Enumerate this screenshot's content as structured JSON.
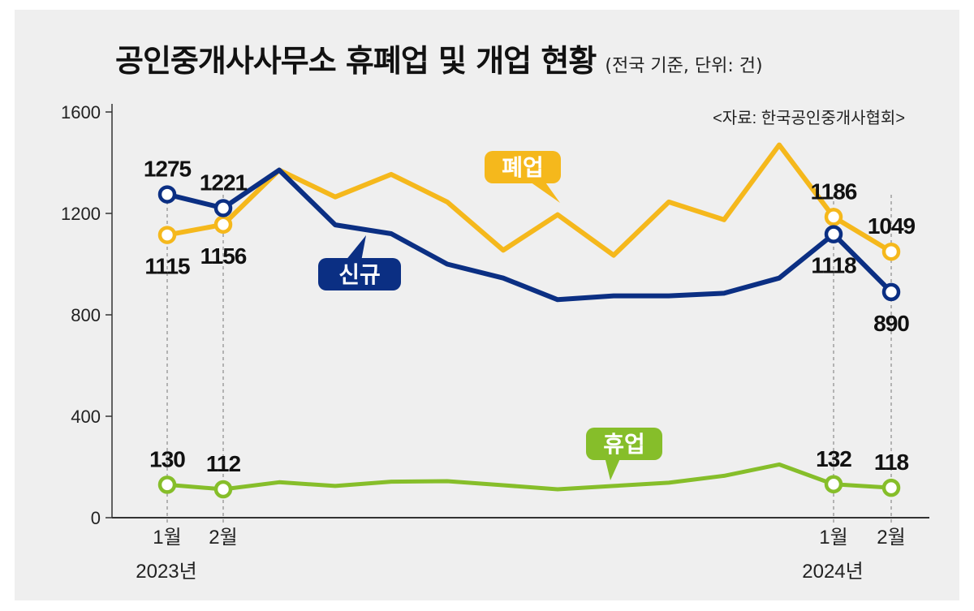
{
  "chart_data": {
    "type": "line",
    "title": "공인중개사사무소 휴폐업 및 개업 현황",
    "subtitle": "(전국 기준, 단위: 건)",
    "source": "<자료: 한국공인중개사협회>",
    "ylim": [
      0,
      1600
    ],
    "yticks": [
      "0",
      "400",
      "800",
      "1200",
      "1600"
    ],
    "x": [
      "2023-01",
      "2023-02",
      "2023-03",
      "2023-04",
      "2023-05",
      "2023-06",
      "2023-07",
      "2023-08",
      "2023-09",
      "2023-10",
      "2023-11",
      "2023-12",
      "2024-01",
      "2024-02"
    ],
    "x_tick_labels": [
      {
        "index": 0,
        "month": "1월",
        "year": "2023년"
      },
      {
        "index": 1,
        "month": "2월",
        "year": ""
      },
      {
        "index": 12,
        "month": "1월",
        "year": "2024년"
      },
      {
        "index": 13,
        "month": "2월",
        "year": ""
      }
    ],
    "series": [
      {
        "name": "폐업",
        "color": "#f5b81c",
        "values": [
          1115,
          1156,
          1371,
          1265,
          1354,
          1245,
          1055,
          1195,
          1035,
          1245,
          1175,
          1470,
          1186,
          1049
        ],
        "labels": {
          "0": "1115",
          "1": "1156",
          "12": "1186",
          "13": "1049"
        }
      },
      {
        "name": "신규",
        "color": "#0b2f83",
        "values": [
          1275,
          1221,
          1371,
          1155,
          1120,
          1000,
          945,
          860,
          875,
          875,
          885,
          945,
          1118,
          890
        ],
        "labels": {
          "0": "1275",
          "1": "1221",
          "12": "1118",
          "13": "890"
        }
      },
      {
        "name": "휴업",
        "color": "#86be2a",
        "values": [
          130,
          112,
          140,
          125,
          142,
          144,
          128,
          112,
          125,
          138,
          165,
          210,
          132,
          118
        ],
        "labels": {
          "0": "130",
          "1": "112",
          "12": "132",
          "13": "118"
        }
      }
    ],
    "grid": false,
    "legend": "inline labels"
  }
}
